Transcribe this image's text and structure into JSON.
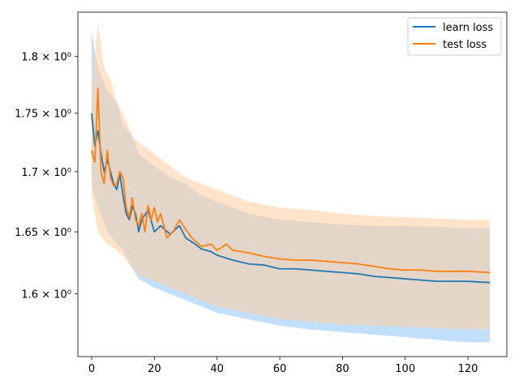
{
  "chart_data": {
    "type": "line",
    "yscale": "log",
    "xlim": [
      -4.4,
      132.4
    ],
    "ylim": [
      1.551,
      1.84
    ],
    "x_ticks": [
      0,
      20,
      40,
      60,
      80,
      100,
      120
    ],
    "x_tick_labels": [
      "0",
      "20",
      "40",
      "60",
      "80",
      "100",
      "120"
    ],
    "y_ticks": [
      1.6,
      1.65,
      1.7,
      1.75,
      1.8
    ],
    "y_tick_labels": [
      "1.6 × 10⁰",
      "1.65 × 10⁰",
      "1.7 × 10⁰",
      "1.75 × 10⁰",
      "1.8 × 10⁰"
    ],
    "legend_position": "top-right",
    "grid": false,
    "series": [
      {
        "name": "learn loss",
        "color": "#1f77b4",
        "band_color": "#8ec4f7",
        "anchors": [
          [
            0,
            1.75
          ],
          [
            1,
            1.722
          ],
          [
            2,
            1.735
          ],
          [
            3,
            1.715
          ],
          [
            4,
            1.7
          ],
          [
            5,
            1.71
          ],
          [
            7,
            1.69
          ],
          [
            8,
            1.685
          ],
          [
            9,
            1.698
          ],
          [
            10,
            1.68
          ],
          [
            11,
            1.665
          ],
          [
            12,
            1.66
          ],
          [
            13,
            1.671
          ],
          [
            14,
            1.665
          ],
          [
            15,
            1.65
          ],
          [
            16,
            1.66
          ],
          [
            18,
            1.668
          ],
          [
            20,
            1.65
          ],
          [
            22,
            1.655
          ],
          [
            25,
            1.648
          ],
          [
            28,
            1.655
          ],
          [
            30,
            1.645
          ],
          [
            33,
            1.64
          ],
          [
            35,
            1.636
          ],
          [
            38,
            1.634
          ],
          [
            40,
            1.631
          ],
          [
            45,
            1.627
          ],
          [
            50,
            1.624
          ],
          [
            55,
            1.623
          ],
          [
            60,
            1.62
          ],
          [
            65,
            1.62
          ],
          [
            70,
            1.619
          ],
          [
            75,
            1.618
          ],
          [
            80,
            1.617
          ],
          [
            85,
            1.616
          ],
          [
            90,
            1.614
          ],
          [
            95,
            1.613
          ],
          [
            100,
            1.612
          ],
          [
            105,
            1.611
          ],
          [
            110,
            1.61
          ],
          [
            115,
            1.61
          ],
          [
            120,
            1.61
          ],
          [
            127,
            1.609
          ]
        ],
        "band": {
          "upper": [
            [
              0,
              1.82
            ],
            [
              2,
              1.79
            ],
            [
              5,
              1.77
            ],
            [
              8,
              1.76
            ],
            [
              10,
              1.74
            ],
            [
              13,
              1.73
            ],
            [
              15,
              1.715
            ],
            [
              20,
              1.705
            ],
            [
              25,
              1.695
            ],
            [
              30,
              1.69
            ],
            [
              35,
              1.68
            ],
            [
              40,
              1.675
            ],
            [
              50,
              1.665
            ],
            [
              60,
              1.66
            ],
            [
              70,
              1.658
            ],
            [
              80,
              1.656
            ],
            [
              90,
              1.655
            ],
            [
              100,
              1.655
            ],
            [
              110,
              1.654
            ],
            [
              120,
              1.653
            ],
            [
              127,
              1.653
            ]
          ],
          "lower": [
            [
              0,
              1.69
            ],
            [
              2,
              1.67
            ],
            [
              5,
              1.65
            ],
            [
              8,
              1.64
            ],
            [
              10,
              1.635
            ],
            [
              13,
              1.62
            ],
            [
              15,
              1.612
            ],
            [
              20,
              1.605
            ],
            [
              25,
              1.6
            ],
            [
              30,
              1.595
            ],
            [
              35,
              1.59
            ],
            [
              40,
              1.585
            ],
            [
              50,
              1.58
            ],
            [
              60,
              1.575
            ],
            [
              70,
              1.572
            ],
            [
              80,
              1.57
            ],
            [
              90,
              1.568
            ],
            [
              100,
              1.566
            ],
            [
              110,
              1.564
            ],
            [
              120,
              1.562
            ],
            [
              127,
              1.562
            ]
          ]
        }
      },
      {
        "name": "test loss",
        "color": "#ff7f0e",
        "band_color": "#ffcc9e",
        "anchors": [
          [
            0,
            1.718
          ],
          [
            1,
            1.708
          ],
          [
            2,
            1.772
          ],
          [
            3,
            1.7
          ],
          [
            4,
            1.69
          ],
          [
            5,
            1.718
          ],
          [
            6,
            1.695
          ],
          [
            7,
            1.688
          ],
          [
            8,
            1.69
          ],
          [
            9,
            1.7
          ],
          [
            10,
            1.695
          ],
          [
            11,
            1.67
          ],
          [
            12,
            1.662
          ],
          [
            13,
            1.678
          ],
          [
            14,
            1.66
          ],
          [
            15,
            1.655
          ],
          [
            16,
            1.665
          ],
          [
            17,
            1.65
          ],
          [
            18,
            1.672
          ],
          [
            19,
            1.66
          ],
          [
            20,
            1.67
          ],
          [
            21,
            1.658
          ],
          [
            22,
            1.665
          ],
          [
            24,
            1.645
          ],
          [
            26,
            1.65
          ],
          [
            28,
            1.66
          ],
          [
            30,
            1.652
          ],
          [
            32,
            1.645
          ],
          [
            35,
            1.638
          ],
          [
            38,
            1.64
          ],
          [
            40,
            1.635
          ],
          [
            43,
            1.64
          ],
          [
            45,
            1.635
          ],
          [
            50,
            1.633
          ],
          [
            55,
            1.63
          ],
          [
            60,
            1.628
          ],
          [
            65,
            1.627
          ],
          [
            70,
            1.627
          ],
          [
            75,
            1.626
          ],
          [
            80,
            1.625
          ],
          [
            85,
            1.624
          ],
          [
            90,
            1.622
          ],
          [
            95,
            1.62
          ],
          [
            100,
            1.619
          ],
          [
            105,
            1.619
          ],
          [
            110,
            1.618
          ],
          [
            115,
            1.618
          ],
          [
            120,
            1.618
          ],
          [
            127,
            1.617
          ]
        ],
        "band": {
          "upper": [
            [
              0,
              1.77
            ],
            [
              2,
              1.83
            ],
            [
              4,
              1.79
            ],
            [
              6,
              1.78
            ],
            [
              8,
              1.76
            ],
            [
              10,
              1.75
            ],
            [
              13,
              1.73
            ],
            [
              15,
              1.725
            ],
            [
              20,
              1.715
            ],
            [
              25,
              1.705
            ],
            [
              30,
              1.695
            ],
            [
              35,
              1.69
            ],
            [
              40,
              1.685
            ],
            [
              50,
              1.675
            ],
            [
              60,
              1.67
            ],
            [
              70,
              1.668
            ],
            [
              80,
              1.665
            ],
            [
              90,
              1.663
            ],
            [
              100,
              1.662
            ],
            [
              110,
              1.661
            ],
            [
              120,
              1.66
            ],
            [
              127,
              1.66
            ]
          ],
          "lower": [
            [
              0,
              1.68
            ],
            [
              2,
              1.65
            ],
            [
              5,
              1.64
            ],
            [
              8,
              1.635
            ],
            [
              10,
              1.63
            ],
            [
              13,
              1.62
            ],
            [
              15,
              1.615
            ],
            [
              20,
              1.61
            ],
            [
              25,
              1.605
            ],
            [
              30,
              1.6
            ],
            [
              35,
              1.595
            ],
            [
              40,
              1.59
            ],
            [
              50,
              1.585
            ],
            [
              60,
              1.58
            ],
            [
              70,
              1.578
            ],
            [
              80,
              1.576
            ],
            [
              90,
              1.575
            ],
            [
              100,
              1.574
            ],
            [
              110,
              1.573
            ],
            [
              120,
              1.572
            ],
            [
              127,
              1.572
            ]
          ]
        }
      }
    ]
  }
}
